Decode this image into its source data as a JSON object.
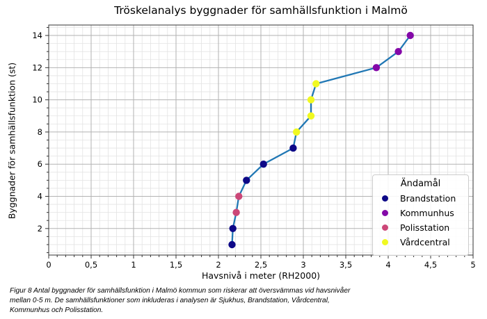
{
  "title": "Tröskelanalys byggnader för samhällsfunktion i Malmö",
  "x_axis": {
    "label": "Havsnivå i meter (RH2000)",
    "tick_values": [
      0,
      0.5,
      1,
      1.5,
      2,
      2.5,
      3,
      3.5,
      4,
      4.5,
      5
    ],
    "tick_labels": [
      "0",
      "0,5",
      "1",
      "1,5",
      "2",
      "2,5",
      "3",
      "3,5",
      "4",
      "4,5",
      "5"
    ]
  },
  "y_axis": {
    "label": "Byggnader för samhällsfunktion (st)",
    "tick_values": [
      2,
      4,
      6,
      8,
      10,
      12,
      14
    ],
    "tick_labels": [
      "2",
      "4",
      "6",
      "8",
      "10",
      "12",
      "14"
    ]
  },
  "legend": {
    "title": "Ändamål",
    "items": [
      {
        "label": "Brandstation",
        "color": "#0d0887"
      },
      {
        "label": "Kommunhus",
        "color": "#8408a8"
      },
      {
        "label": "Polisstation",
        "color": "#cc4778"
      },
      {
        "label": "Vårdcentral",
        "color": "#f0f921"
      }
    ]
  },
  "caption": {
    "lines": [
      "Figur 8 Antal byggnader för samhällsfunktion i Malmö kommun som riskerar att översvämmas vid havsnivåer",
      "mellan 0-5 m. De samhällsfunktioner som inkluderas i analysen är Sjukhus, Brandstation, Vårdcentral,",
      "Kommunhus och Polisstation."
    ]
  },
  "chart_data": {
    "type": "line",
    "title": "Tröskelanalys byggnader för samhällsfunktion i Malmö",
    "xlabel": "Havsnivå i meter (RH2000)",
    "ylabel": "Byggnader för samhällsfunktion (st)",
    "xlim": [
      0,
      5
    ],
    "ylim": [
      0.35,
      14.65
    ],
    "grid": {
      "major_color": "#b2b2b2",
      "minor_color": "#e3e3e3",
      "x_major_step": 0.5,
      "x_minor_step": 0.1,
      "y_major_step": 2,
      "y_minor_step": 0.5
    },
    "line_color": "#2077b4",
    "legend_position": "center-right",
    "points": [
      {
        "x": 2.16,
        "y": 1,
        "category": "Brandstation"
      },
      {
        "x": 2.17,
        "y": 2,
        "category": "Brandstation"
      },
      {
        "x": 2.21,
        "y": 3,
        "category": "Polisstation"
      },
      {
        "x": 2.24,
        "y": 4,
        "category": "Polisstation"
      },
      {
        "x": 2.33,
        "y": 5,
        "category": "Brandstation"
      },
      {
        "x": 2.53,
        "y": 6,
        "category": "Brandstation"
      },
      {
        "x": 2.88,
        "y": 7,
        "category": "Brandstation"
      },
      {
        "x": 2.92,
        "y": 8,
        "category": "Vårdcentral"
      },
      {
        "x": 3.09,
        "y": 9,
        "category": "Vårdcentral"
      },
      {
        "x": 3.09,
        "y": 10,
        "category": "Vårdcentral"
      },
      {
        "x": 3.15,
        "y": 11,
        "category": "Vårdcentral"
      },
      {
        "x": 3.86,
        "y": 12,
        "category": "Kommunhus"
      },
      {
        "x": 4.12,
        "y": 13,
        "category": "Kommunhus"
      },
      {
        "x": 4.26,
        "y": 14,
        "category": "Kommunhus"
      }
    ]
  }
}
